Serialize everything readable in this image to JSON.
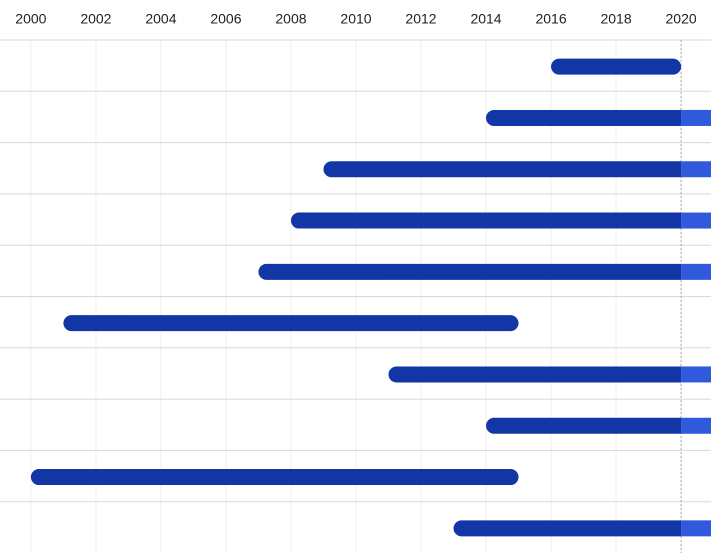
{
  "chart_data": {
    "type": "timeline",
    "xlim": [
      1999.05,
      2020.92
    ],
    "xticks": [
      2000,
      2002,
      2004,
      2006,
      2008,
      2010,
      2012,
      2014,
      2016,
      2018,
      2020
    ],
    "today": 2020,
    "grid": true,
    "color": "#1336a6",
    "ongoing_color": "#3059db",
    "series": [
      {
        "name": "start",
        "values": [
          2016,
          2014,
          2009,
          2008,
          2007,
          2001,
          2011,
          2014,
          2000,
          2013
        ]
      },
      {
        "name": "end",
        "values": [
          2020,
          null,
          null,
          null,
          null,
          2015,
          null,
          null,
          2015,
          null
        ]
      }
    ]
  }
}
